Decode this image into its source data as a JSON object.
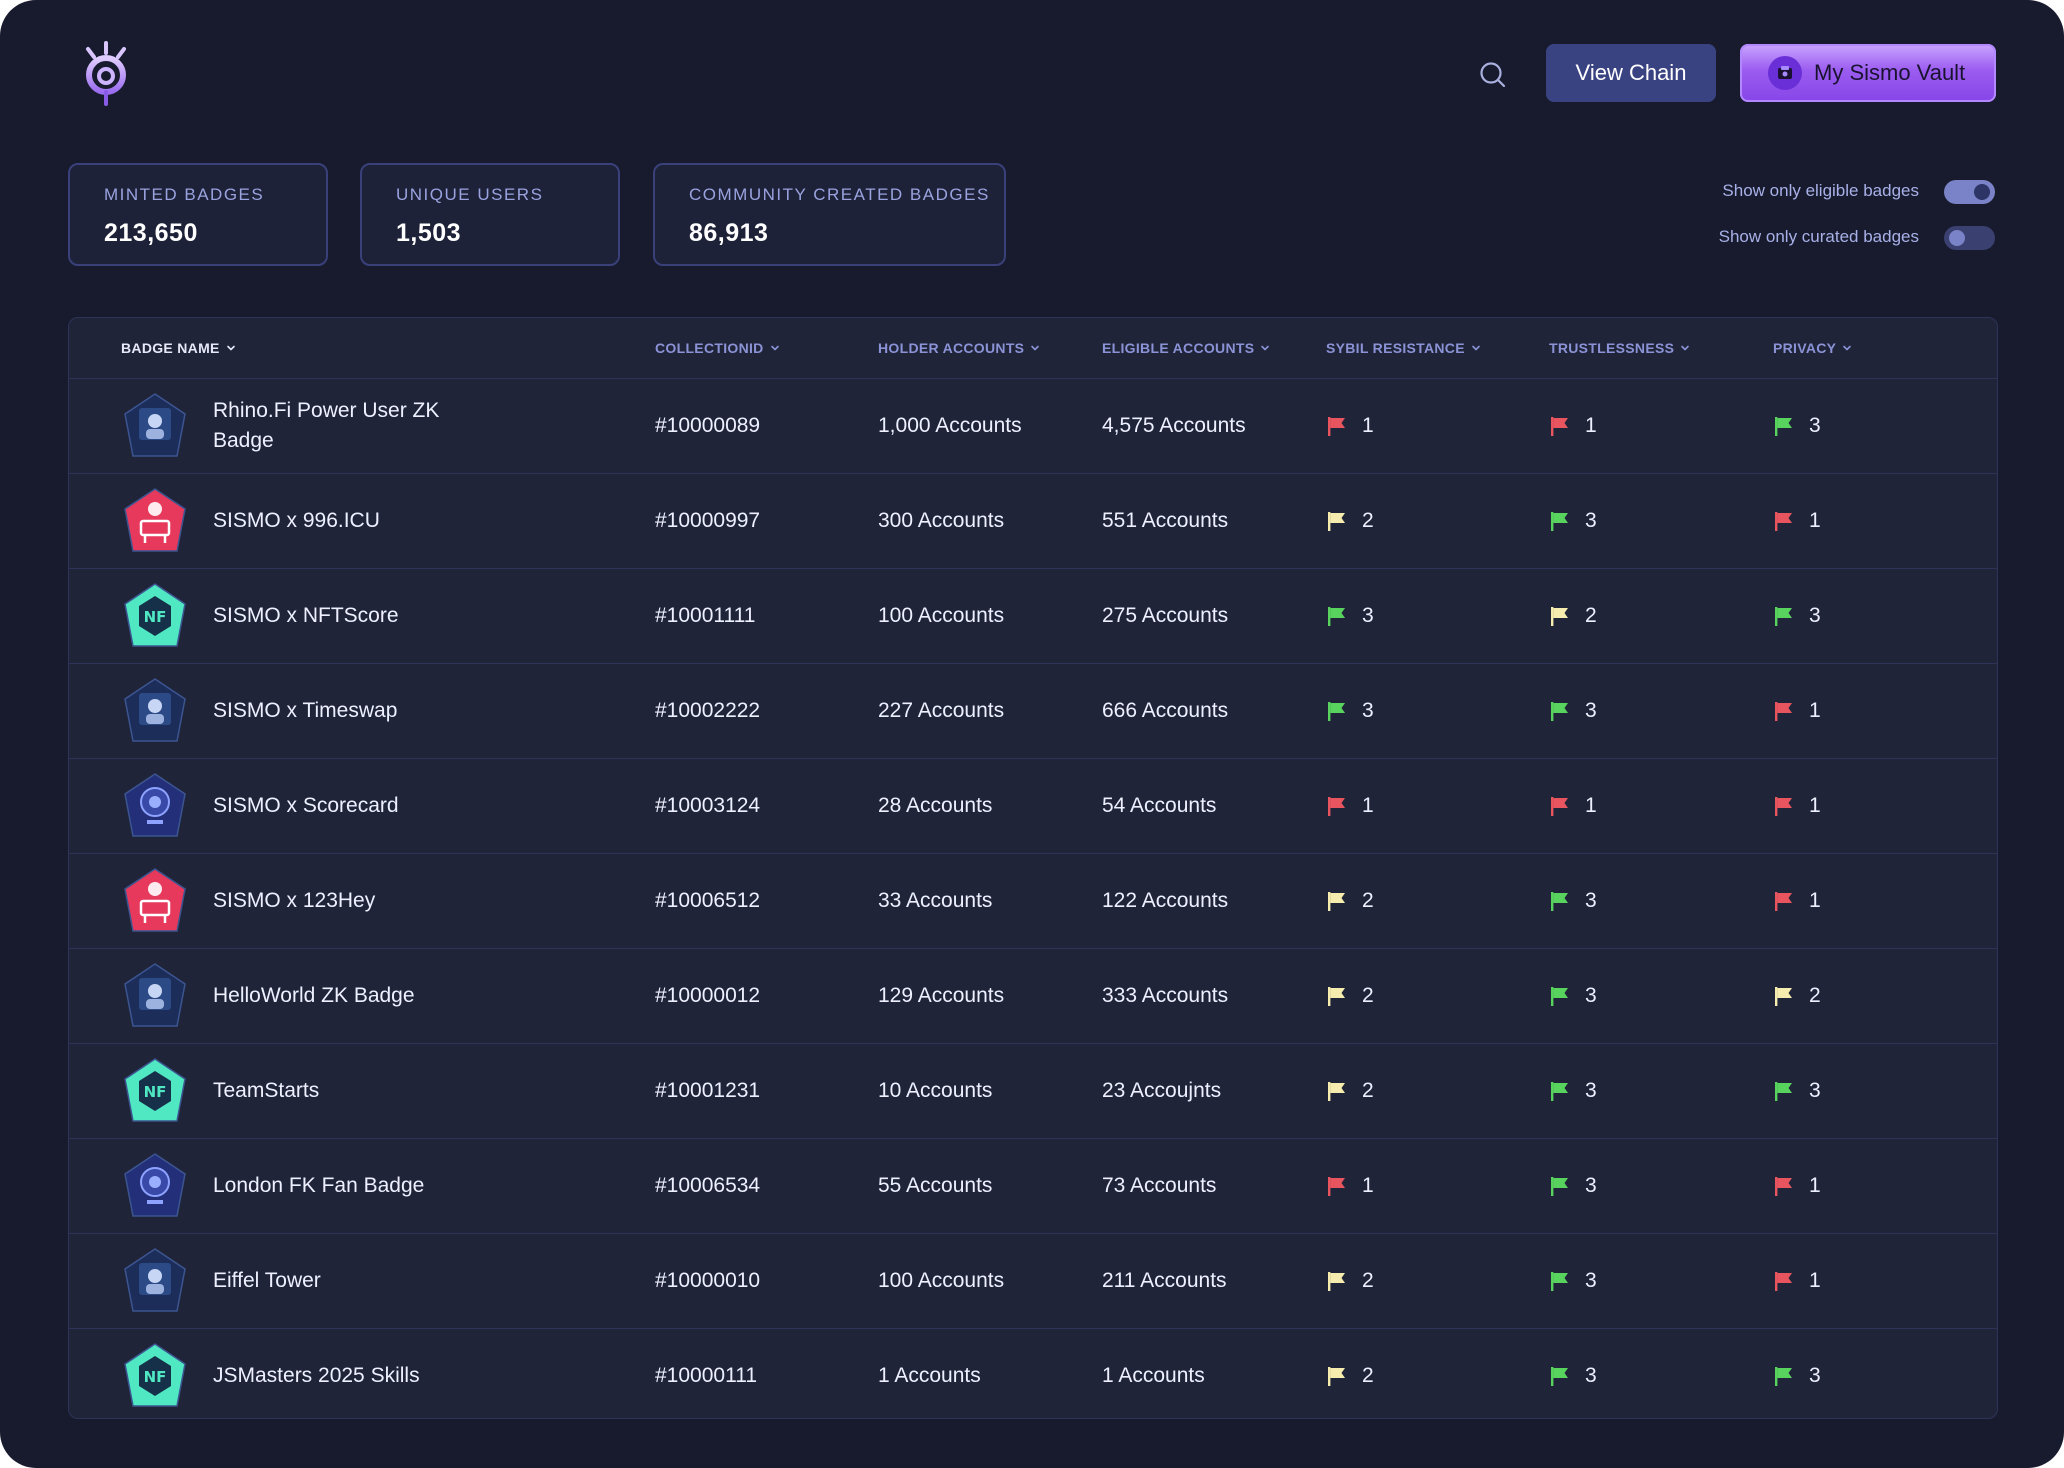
{
  "header": {
    "logo_icon": "sismo-eye-logo",
    "search_icon": "search-icon",
    "view_chain_label": "View Chain",
    "vault_label": "My Sismo Vault",
    "vault_icon": "vault-avatar-icon"
  },
  "stats": [
    {
      "label": "MINTED BADGES",
      "value": "213,650"
    },
    {
      "label": "UNIQUE USERS",
      "value": "1,503"
    },
    {
      "label": "COMMUNITY CREATED BADGES",
      "value": "86,913"
    }
  ],
  "filters": [
    {
      "label": "Show only eligible badges",
      "on": true
    },
    {
      "label": "Show only curated badges",
      "on": false
    }
  ],
  "table": {
    "columns": [
      "BADGE NAME",
      "COLLECTIONID",
      "HOLDER ACCOUNTS",
      "ELIGIBLE ACCOUNTS",
      "SYBIL RESISTANCE",
      "TRUSTLESSNESS",
      "PRIVACY"
    ],
    "rows": [
      {
        "name": "Rhino.Fi Power User ZK Badge",
        "badge": "dark",
        "id": "#10000089",
        "holders": "1,000 Accounts",
        "eligible": "4,575 Accounts",
        "sybil": "1",
        "trust": "1",
        "privacy": "3"
      },
      {
        "name": "SISMO x 996.ICU",
        "badge": "red",
        "id": "#10000997",
        "holders": "300 Accounts",
        "eligible": "551 Accounts",
        "sybil": "2",
        "trust": "3",
        "privacy": "1"
      },
      {
        "name": "SISMO x NFTScore",
        "badge": "teal",
        "id": "#10001111",
        "holders": "100 Accounts",
        "eligible": "275 Accounts",
        "sybil": "3",
        "trust": "2",
        "privacy": "3"
      },
      {
        "name": "SISMO x Timeswap",
        "badge": "dark",
        "id": "#10002222",
        "holders": "227 Accounts",
        "eligible": "666 Accounts",
        "sybil": "3",
        "trust": "3",
        "privacy": "1"
      },
      {
        "name": "SISMO x Scorecard",
        "badge": "navy",
        "id": "#10003124",
        "holders": "28 Accounts",
        "eligible": "54 Accounts",
        "sybil": "1",
        "trust": "1",
        "privacy": "1"
      },
      {
        "name": "SISMO x 123Hey",
        "badge": "red",
        "id": "#10006512",
        "holders": "33 Accounts",
        "eligible": "122 Accounts",
        "sybil": "2",
        "trust": "3",
        "privacy": "1"
      },
      {
        "name": "HelloWorld ZK Badge",
        "badge": "dark",
        "id": "#10000012",
        "holders": "129 Accounts",
        "eligible": "333 Accounts",
        "sybil": "2",
        "trust": "3",
        "privacy": "2"
      },
      {
        "name": "TeamStarts",
        "badge": "teal",
        "id": "#10001231",
        "holders": "10 Accounts",
        "eligible": "23 Accoujnts",
        "sybil": "2",
        "trust": "3",
        "privacy": "3"
      },
      {
        "name": "London FK Fan Badge",
        "badge": "navy",
        "id": "#10006534",
        "holders": "55 Accounts",
        "eligible": "73 Accounts",
        "sybil": "1",
        "trust": "3",
        "privacy": "1"
      },
      {
        "name": "Eiffel Tower",
        "badge": "dark",
        "id": "#10000010",
        "holders": "100 Accounts",
        "eligible": "211 Accounts",
        "sybil": "2",
        "trust": "3",
        "privacy": "1"
      },
      {
        "name": "JSMasters 2025 Skills",
        "badge": "teal",
        "id": "#10000111",
        "holders": "1  Accounts",
        "eligible": "1 Accounts",
        "sybil": "2",
        "trust": "3",
        "privacy": "3"
      }
    ]
  },
  "colors": {
    "flag_1": "#e8555f",
    "flag_2": "#f6ecae",
    "flag_3": "#58d35d",
    "badge_dark": "#1c2d5a",
    "badge_red": "#e6395c",
    "badge_teal": "#4fe8c2",
    "badge_navy": "#233079"
  }
}
